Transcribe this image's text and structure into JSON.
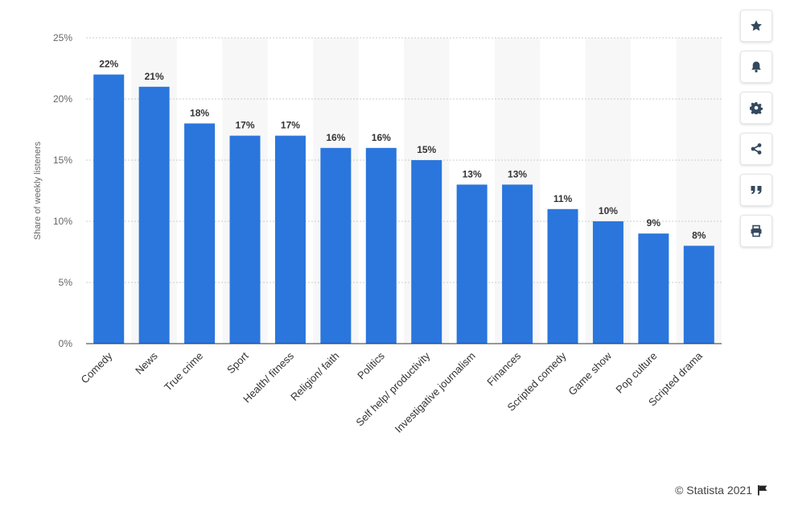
{
  "chart_data": {
    "type": "bar",
    "categories": [
      "Comedy",
      "News",
      "True crime",
      "Sport",
      "Health/ fitness",
      "Religion/ faith",
      "Politics",
      "Self help/ productivity",
      "Investigative journalism",
      "Finances",
      "Scripted comedy",
      "Game show",
      "Pop culture",
      "Scripted drama"
    ],
    "values": [
      22,
      21,
      18,
      17,
      17,
      16,
      16,
      15,
      13,
      13,
      11,
      10,
      9,
      8
    ],
    "data_labels": [
      "22%",
      "21%",
      "18%",
      "17%",
      "17%",
      "16%",
      "16%",
      "15%",
      "13%",
      "13%",
      "11%",
      "10%",
      "9%",
      "8%"
    ],
    "ylabel": "Share of weekly listeners",
    "yticks": [
      "0%",
      "5%",
      "10%",
      "15%",
      "20%",
      "25%"
    ],
    "ylim": [
      0,
      25
    ],
    "grid": true,
    "legend": "none"
  },
  "colors": {
    "bar": "#2a76dd",
    "band": "#f7f7f7",
    "grid": "#cccccc",
    "axis": "#333333",
    "icon": "#34495e"
  },
  "sidebar": {
    "buttons": [
      "star-icon",
      "bell-icon",
      "gear-icon",
      "share-icon",
      "quote-icon",
      "print-icon"
    ]
  },
  "footer": {
    "credit": "© Statista 2021",
    "flag_icon": "flag-icon"
  }
}
